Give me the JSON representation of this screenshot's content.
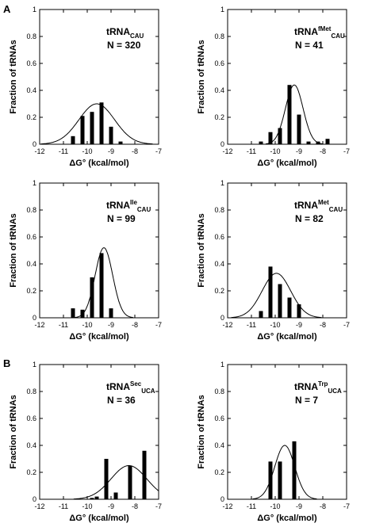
{
  "section_labels": [
    "A",
    "B"
  ],
  "chart_data": [
    {
      "type": "bar",
      "title": {
        "base": "tRNA",
        "sup": "",
        "sub": "CAU"
      },
      "annotation": "N = 320",
      "xlabel": "ΔG° (kcal/mol)",
      "ylabel": "Fraction of tRNAs",
      "xlim": [
        -12,
        -7
      ],
      "ylim": [
        0,
        1
      ],
      "xticks": [
        -12,
        -11,
        -10,
        -9,
        -8,
        -7
      ],
      "yticks": [
        0,
        0.2,
        0.4,
        0.6,
        0.8,
        1
      ],
      "bar_x": [
        -10.6,
        -10.2,
        -9.8,
        -9.4,
        -9.0,
        -8.6
      ],
      "bar_values": [
        0.06,
        0.21,
        0.24,
        0.31,
        0.13,
        0.02
      ],
      "fit_curve": {
        "type": "gaussian",
        "mean": -9.6,
        "sd": 0.75,
        "peak": 0.3
      }
    },
    {
      "type": "bar",
      "title": {
        "base": "tRNA",
        "sup": "fMet",
        "sub": "CAU"
      },
      "annotation": "N = 41",
      "xlabel": "ΔG° (kcal/mol)",
      "ylabel": "Fraction of tRNAs",
      "xlim": [
        -12,
        -7
      ],
      "ylim": [
        0,
        1
      ],
      "xticks": [
        -12,
        -11,
        -10,
        -9,
        -8,
        -7
      ],
      "yticks": [
        0,
        0.2,
        0.4,
        0.6,
        0.8,
        1
      ],
      "bar_x": [
        -10.6,
        -10.2,
        -9.8,
        -9.4,
        -9.0,
        -8.6,
        -8.2,
        -7.8
      ],
      "bar_values": [
        0.02,
        0.09,
        0.12,
        0.44,
        0.22,
        0.02,
        0.02,
        0.04
      ],
      "fit_curve": {
        "type": "gaussian",
        "mean": -9.2,
        "sd": 0.37,
        "peak": 0.44
      }
    },
    {
      "type": "bar",
      "title": {
        "base": "tRNA",
        "sup": "Ile",
        "sub": "CAU"
      },
      "annotation": "N = 99",
      "xlabel": "ΔG° (kcal/mol)",
      "ylabel": "Fraction of tRNAs",
      "xlim": [
        -12,
        -7
      ],
      "ylim": [
        0,
        1
      ],
      "xticks": [
        -12,
        -11,
        -10,
        -9,
        -8,
        -7
      ],
      "yticks": [
        0,
        0.2,
        0.4,
        0.6,
        0.8,
        1
      ],
      "bar_x": [
        -10.6,
        -10.2,
        -9.8,
        -9.4,
        -9.0
      ],
      "bar_values": [
        0.07,
        0.06,
        0.3,
        0.48,
        0.07
      ],
      "fit_curve": {
        "type": "gaussian",
        "mean": -9.3,
        "sd": 0.37,
        "peak": 0.52
      }
    },
    {
      "type": "bar",
      "title": {
        "base": "tRNA",
        "sup": "Met",
        "sub": "CAU"
      },
      "annotation": "N = 82",
      "xlabel": "ΔG° (kcal/mol)",
      "ylabel": "Fraction of tRNAs",
      "xlim": [
        -12,
        -7
      ],
      "ylim": [
        0,
        1
      ],
      "xticks": [
        -12,
        -11,
        -10,
        -9,
        -8,
        -7
      ],
      "yticks": [
        0,
        0.2,
        0.4,
        0.6,
        0.8,
        1
      ],
      "bar_x": [
        -10.6,
        -10.2,
        -9.8,
        -9.4,
        -9.0
      ],
      "bar_values": [
        0.05,
        0.38,
        0.25,
        0.15,
        0.1
      ],
      "fit_curve": {
        "type": "gaussian",
        "mean": -9.95,
        "sd": 0.6,
        "peak": 0.33
      }
    },
    {
      "type": "bar",
      "title": {
        "base": "tRNA",
        "sup": "Sec",
        "sub": "UCA"
      },
      "annotation": "N = 36",
      "xlabel": "ΔG° (kcal/mol)",
      "ylabel": "Fraction of tRNAs",
      "xlim": [
        -12,
        -7
      ],
      "ylim": [
        0,
        1
      ],
      "xticks": [
        -12,
        -11,
        -10,
        -9,
        -8,
        -7
      ],
      "yticks": [
        0,
        0.2,
        0.4,
        0.6,
        0.8,
        1
      ],
      "bar_x": [
        -9.8,
        -9.6,
        -9.2,
        -8.8,
        -8.2,
        -7.6
      ],
      "bar_values": [
        0.01,
        0.02,
        0.3,
        0.05,
        0.25,
        0.36
      ],
      "fit_curve": {
        "type": "gaussian",
        "mean": -8.25,
        "sd": 0.75,
        "peak": 0.25
      }
    },
    {
      "type": "bar",
      "title": {
        "base": "tRNA",
        "sup": "Trp",
        "sub": "UCA"
      },
      "annotation": "N = 7",
      "xlabel": "ΔG° (kcal/mol)",
      "ylabel": "Fraction of tRNAs",
      "xlim": [
        -12,
        -7
      ],
      "ylim": [
        0,
        1
      ],
      "xticks": [
        -12,
        -11,
        -10,
        -9,
        -8,
        -7
      ],
      "yticks": [
        0,
        0.2,
        0.4,
        0.6,
        0.8,
        1
      ],
      "bar_x": [
        -10.2,
        -9.8,
        -9.2
      ],
      "bar_values": [
        0.28,
        0.28,
        0.43
      ],
      "fit_curve": {
        "type": "gaussian",
        "mean": -9.6,
        "sd": 0.42,
        "peak": 0.4
      }
    }
  ]
}
